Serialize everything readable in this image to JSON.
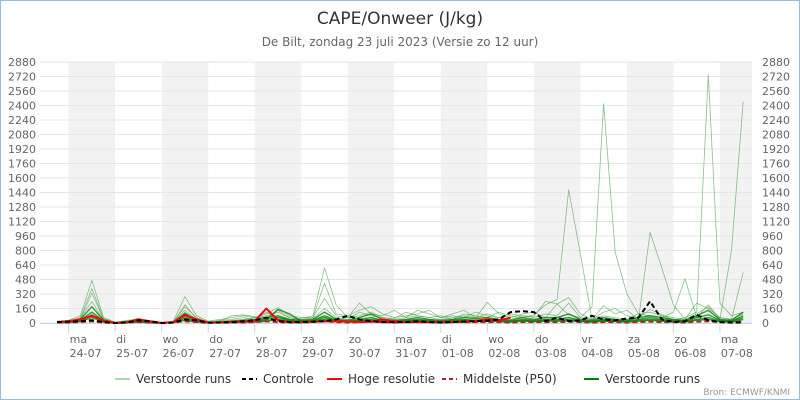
{
  "chart_data": {
    "type": "line",
    "title": "CAPE/Onweer (J/kg)",
    "subtitle": "De Bilt, zondag 23 juli 2023 (Versie zo 12 uur)",
    "credit": "Bron: ECMWF/KNMI",
    "ylim": [
      0,
      2880
    ],
    "yticks": [
      0,
      160,
      320,
      480,
      640,
      800,
      960,
      1120,
      1280,
      1440,
      1600,
      1760,
      1920,
      2080,
      2240,
      2400,
      2560,
      2720,
      2880
    ],
    "grid": true,
    "legend_position": "bottom",
    "xticks": [
      {
        "day": "ma",
        "date": "24-07"
      },
      {
        "day": "di",
        "date": "25-07"
      },
      {
        "day": "wo",
        "date": "26-07"
      },
      {
        "day": "do",
        "date": "27-07"
      },
      {
        "day": "vr",
        "date": "28-07"
      },
      {
        "day": "za",
        "date": "29-07"
      },
      {
        "day": "zo",
        "date": "30-07"
      },
      {
        "day": "ma",
        "date": "31-07"
      },
      {
        "day": "di",
        "date": "01-08"
      },
      {
        "day": "wo",
        "date": "02-08"
      },
      {
        "day": "do",
        "date": "03-08"
      },
      {
        "day": "vr",
        "date": "04-08"
      },
      {
        "day": "za",
        "date": "05-08"
      },
      {
        "day": "zo",
        "date": "06-08"
      },
      {
        "day": "ma",
        "date": "07-08"
      }
    ],
    "x": [
      "23-07 18:00",
      "24-07 00:00",
      "24-07 06:00",
      "24-07 12:00",
      "24-07 18:00",
      "25-07 00:00",
      "25-07 06:00",
      "25-07 12:00",
      "25-07 18:00",
      "26-07 00:00",
      "26-07 06:00",
      "26-07 12:00",
      "26-07 18:00",
      "27-07 00:00",
      "27-07 06:00",
      "27-07 12:00",
      "27-07 18:00",
      "28-07 00:00",
      "28-07 06:00",
      "28-07 12:00",
      "28-07 18:00",
      "29-07 00:00",
      "29-07 06:00",
      "29-07 12:00",
      "29-07 18:00",
      "30-07 00:00",
      "30-07 06:00",
      "30-07 12:00",
      "30-07 18:00",
      "31-07 00:00",
      "31-07 06:00",
      "31-07 12:00",
      "31-07 18:00",
      "01-08 00:00",
      "01-08 06:00",
      "01-08 12:00",
      "01-08 18:00",
      "02-08 00:00",
      "02-08 06:00",
      "02-08 12:00",
      "02-08 18:00",
      "03-08 00:00",
      "03-08 06:00",
      "03-08 12:00",
      "03-08 18:00",
      "04-08 00:00",
      "04-08 06:00",
      "04-08 12:00",
      "04-08 18:00",
      "05-08 00:00",
      "05-08 06:00",
      "05-08 12:00",
      "05-08 18:00",
      "06-08 00:00",
      "06-08 06:00",
      "06-08 12:00",
      "06-08 18:00",
      "07-08 00:00",
      "07-08 06:00",
      "07-08 12:00"
    ],
    "legend": [
      {
        "name": "Verstoorde runs",
        "color": "#a8d8a8",
        "style": "solid"
      },
      {
        "name": "Controle",
        "color": "#000000",
        "style": "dashed"
      },
      {
        "name": "Hoge resolutie",
        "color": "#ff0000",
        "style": "solid"
      },
      {
        "name": "Middelste (P50)",
        "color": "#b22222",
        "style": "dashed"
      },
      {
        "name": "Verstoorde runs",
        "color": "#008000",
        "style": "solid"
      }
    ],
    "ensemble_light": [
      [
        20,
        30,
        80,
        470,
        60,
        10,
        20,
        50,
        20,
        0,
        10,
        180,
        60,
        10,
        30,
        40,
        60,
        40,
        120,
        60,
        40,
        50,
        80,
        610,
        200,
        60,
        80,
        120,
        60,
        50,
        120,
        80,
        60,
        80,
        40,
        100,
        80,
        60,
        120,
        80,
        60,
        90,
        200,
        260,
        1470,
        760,
        40,
        120,
        160,
        80,
        60,
        150,
        90,
        30,
        60,
        120,
        2740,
        220,
        80,
        120
      ],
      [
        15,
        25,
        60,
        380,
        50,
        5,
        30,
        40,
        10,
        0,
        20,
        290,
        80,
        20,
        40,
        60,
        80,
        60,
        100,
        170,
        80,
        60,
        60,
        440,
        100,
        80,
        140,
        180,
        100,
        60,
        80,
        100,
        140,
        60,
        80,
        60,
        120,
        80,
        60,
        100,
        80,
        70,
        240,
        210,
        90,
        60,
        180,
        2420,
        780,
        320,
        100,
        80,
        60,
        120,
        490,
        60,
        200,
        40,
        800,
        2440
      ],
      [
        10,
        20,
        40,
        330,
        40,
        5,
        20,
        50,
        20,
        0,
        10,
        200,
        50,
        10,
        20,
        80,
        90,
        70,
        60,
        140,
        60,
        40,
        60,
        270,
        80,
        60,
        220,
        100,
        80,
        140,
        60,
        140,
        100,
        60,
        100,
        140,
        60,
        230,
        100,
        60,
        100,
        120,
        60,
        210,
        280,
        100,
        40,
        190,
        100,
        140,
        40,
        1000,
        610,
        200,
        40,
        220,
        160,
        60,
        40,
        560
      ],
      [
        10,
        20,
        50,
        240,
        30,
        0,
        20,
        40,
        10,
        0,
        10,
        140,
        40,
        10,
        20,
        30,
        40,
        60,
        80,
        120,
        60,
        40,
        50,
        160,
        60,
        40,
        120,
        80,
        60,
        40,
        60,
        80,
        60,
        40,
        60,
        80,
        60,
        100,
        60,
        40,
        80,
        60,
        100,
        80,
        220,
        60,
        40,
        80,
        60,
        40,
        100,
        120,
        80,
        60,
        40,
        100,
        180,
        60,
        40,
        100
      ]
    ],
    "ensemble_dark": [
      [
        10,
        15,
        40,
        180,
        30,
        0,
        10,
        30,
        10,
        0,
        5,
        110,
        30,
        5,
        10,
        20,
        30,
        40,
        60,
        80,
        40,
        30,
        40,
        120,
        40,
        30,
        60,
        100,
        40,
        30,
        40,
        60,
        40,
        30,
        40,
        60,
        50,
        60,
        40,
        30,
        60,
        40,
        60,
        60,
        100,
        40,
        30,
        60,
        40,
        30,
        60,
        80,
        60,
        40,
        30,
        80,
        140,
        40,
        30,
        120
      ],
      [
        5,
        10,
        30,
        120,
        20,
        0,
        10,
        20,
        5,
        0,
        5,
        70,
        20,
        5,
        10,
        15,
        20,
        30,
        40,
        60,
        30,
        20,
        30,
        80,
        30,
        20,
        40,
        60,
        30,
        20,
        30,
        40,
        30,
        20,
        30,
        40,
        30,
        40,
        30,
        20,
        40,
        30,
        40,
        40,
        60,
        30,
        20,
        40,
        30,
        20,
        40,
        60,
        40,
        30,
        20,
        60,
        90,
        30,
        20,
        80
      ],
      [
        5,
        10,
        20,
        90,
        10,
        0,
        5,
        15,
        5,
        0,
        5,
        50,
        15,
        5,
        5,
        10,
        15,
        20,
        30,
        150,
        100,
        20,
        20,
        60,
        20,
        15,
        30,
        40,
        20,
        15,
        20,
        30,
        20,
        15,
        20,
        30,
        20,
        30,
        20,
        15,
        30,
        20,
        30,
        30,
        40,
        20,
        15,
        30,
        20,
        15,
        30,
        40,
        30,
        20,
        15,
        40,
        60,
        20,
        15,
        60
      ],
      [
        5,
        5,
        15,
        60,
        10,
        0,
        5,
        10,
        5,
        0,
        5,
        30,
        10,
        5,
        5,
        5,
        10,
        10,
        20,
        40,
        20,
        10,
        15,
        40,
        15,
        10,
        20,
        30,
        15,
        10,
        15,
        20,
        15,
        10,
        15,
        20,
        15,
        20,
        15,
        10,
        20,
        15,
        20,
        20,
        30,
        15,
        10,
        20,
        15,
        10,
        20,
        30,
        20,
        15,
        10,
        30,
        40,
        15,
        10,
        40
      ]
    ],
    "p50": [
      5,
      5,
      10,
      20,
      5,
      0,
      5,
      10,
      5,
      0,
      5,
      20,
      10,
      0,
      5,
      5,
      5,
      10,
      20,
      10,
      5,
      5,
      10,
      20,
      10,
      5,
      10,
      15,
      10,
      5,
      10,
      10,
      10,
      5,
      10,
      10,
      10,
      10,
      10,
      5,
      10,
      10,
      10,
      10,
      15,
      10,
      5,
      10,
      10,
      5,
      10,
      15,
      10,
      10,
      5,
      15,
      20,
      10,
      5,
      15
    ],
    "controle": [
      10,
      15,
      20,
      30,
      10,
      0,
      5,
      30,
      20,
      0,
      5,
      40,
      30,
      5,
      5,
      10,
      20,
      30,
      60,
      20,
      10,
      10,
      15,
      20,
      40,
      80,
      40,
      20,
      10,
      10,
      10,
      20,
      10,
      5,
      10,
      15,
      20,
      25,
      40,
      120,
      130,
      120,
      20,
      60,
      20,
      30,
      80,
      40,
      30,
      50,
      60,
      240,
      40,
      10,
      20,
      90,
      30,
      10,
      5,
      5
    ],
    "hoge_resolutie": [
      10,
      20,
      40,
      80,
      30,
      0,
      5,
      40,
      20,
      0,
      10,
      90,
      40,
      5,
      5,
      10,
      15,
      20,
      160,
      30,
      10,
      10,
      15,
      20,
      20,
      15,
      10,
      15,
      40,
      20,
      10,
      10,
      10,
      10,
      10,
      15,
      25,
      40,
      30,
      60
    ]
  }
}
